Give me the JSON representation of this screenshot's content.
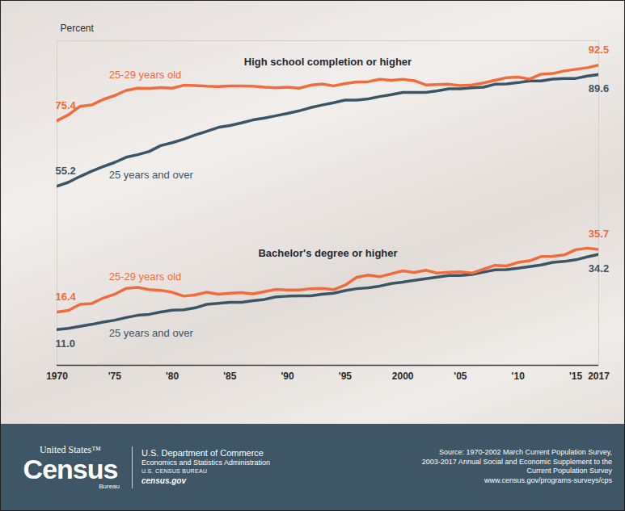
{
  "chart_data": {
    "type": "line",
    "ylabel": "Percent",
    "x": [
      1970,
      1971,
      1972,
      1973,
      1974,
      1975,
      1976,
      1977,
      1978,
      1979,
      1980,
      1981,
      1982,
      1983,
      1984,
      1985,
      1986,
      1987,
      1988,
      1989,
      1990,
      1991,
      1992,
      1993,
      1994,
      1995,
      1996,
      1997,
      1998,
      1999,
      2000,
      2001,
      2002,
      2003,
      2004,
      2005,
      2006,
      2007,
      2008,
      2009,
      2010,
      2011,
      2012,
      2013,
      2014,
      2015,
      2016,
      2017
    ],
    "xlim": [
      1970,
      2017
    ],
    "xticks": [
      1970,
      {
        "value": 1975,
        "label": "'75"
      },
      {
        "value": 1980,
        "label": "'80"
      },
      {
        "value": 1985,
        "label": "'85"
      },
      {
        "value": 1990,
        "label": "'90"
      },
      {
        "value": 1995,
        "label": "'95"
      },
      2000,
      {
        "value": 2005,
        "label": "'05"
      },
      {
        "value": 2010,
        "label": "'10"
      },
      {
        "value": 2015,
        "label": "'15"
      },
      2017
    ],
    "ylim": [
      0,
      100
    ],
    "tick_labels": "x",
    "grid": false,
    "data_labels": true,
    "groups": [
      {
        "title": "High school completion or higher",
        "series": [
          {
            "name": "25 years and over",
            "color": "#3b5466",
            "values": [
              55.2,
              56.4,
              58.2,
              59.8,
              61.2,
              62.5,
              64.1,
              64.9,
              65.9,
              67.7,
              68.6,
              69.7,
              71.0,
              72.1,
              73.3,
              73.9,
              74.7,
              75.6,
              76.2,
              76.9,
              77.6,
              78.4,
              79.4,
              80.2,
              80.9,
              81.7,
              81.7,
              82.1,
              82.8,
              83.4,
              84.1,
              84.1,
              84.1,
              84.6,
              85.2,
              85.2,
              85.5,
              85.7,
              86.6,
              86.7,
              87.1,
              87.6,
              87.6,
              88.2,
              88.4,
              88.4,
              89.1,
              89.6
            ],
            "value_labels": [
              "55.2",
              null,
              null,
              null,
              null,
              null,
              null,
              null,
              null,
              null,
              null,
              null,
              null,
              null,
              null,
              null,
              null,
              null,
              null,
              null,
              null,
              null,
              null,
              null,
              null,
              null,
              null,
              null,
              null,
              null,
              null,
              null,
              null,
              null,
              null,
              null,
              null,
              null,
              null,
              null,
              null,
              null,
              null,
              null,
              null,
              null,
              null,
              "89.6"
            ]
          },
          {
            "name": "25-29 years old",
            "color": "#f26b3a",
            "values": [
              75.4,
              77.2,
              79.8,
              80.2,
              81.9,
              83.1,
              84.7,
              85.4,
              85.3,
              85.6,
              85.4,
              86.3,
              86.2,
              86.0,
              85.9,
              86.1,
              86.1,
              86.0,
              85.7,
              85.5,
              85.7,
              85.4,
              86.3,
              86.7,
              86.1,
              86.8,
              87.3,
              87.4,
              88.1,
              87.8,
              88.1,
              87.7,
              86.4,
              86.5,
              86.6,
              86.2,
              86.4,
              87.0,
              87.8,
              88.6,
              88.8,
              88.2,
              89.7,
              89.9,
              90.7,
              91.2,
              91.7,
              92.5
            ],
            "value_labels": [
              "75.4",
              null,
              null,
              null,
              null,
              null,
              null,
              null,
              null,
              null,
              null,
              null,
              null,
              null,
              null,
              null,
              null,
              null,
              null,
              null,
              null,
              null,
              null,
              null,
              null,
              null,
              null,
              null,
              null,
              null,
              null,
              null,
              null,
              null,
              null,
              null,
              null,
              null,
              null,
              null,
              null,
              null,
              null,
              null,
              null,
              null,
              null,
              "92.5"
            ]
          }
        ]
      },
      {
        "title": "Bachelor's degree or higher",
        "series": [
          {
            "name": "25 years and over",
            "color": "#3b5466",
            "values": [
              11.0,
              11.4,
              12.0,
              12.6,
              13.3,
              13.9,
              14.7,
              15.4,
              15.7,
              16.4,
              17.0,
              17.1,
              17.7,
              18.8,
              19.1,
              19.4,
              19.4,
              19.9,
              20.3,
              21.1,
              21.3,
              21.4,
              21.4,
              21.9,
              22.2,
              23.0,
              23.6,
              23.9,
              24.4,
              25.2,
              25.6,
              26.2,
              26.7,
              27.2,
              27.7,
              27.7,
              28.0,
              28.7,
              29.4,
              29.5,
              29.9,
              30.4,
              30.9,
              31.7,
              32.0,
              32.5,
              33.4,
              34.2
            ],
            "value_labels": [
              "11.0",
              null,
              null,
              null,
              null,
              null,
              null,
              null,
              null,
              null,
              null,
              null,
              null,
              null,
              null,
              null,
              null,
              null,
              null,
              null,
              null,
              null,
              null,
              null,
              null,
              null,
              null,
              null,
              null,
              null,
              null,
              null,
              null,
              null,
              null,
              null,
              null,
              null,
              null,
              null,
              null,
              null,
              null,
              null,
              null,
              null,
              null,
              "34.2"
            ]
          },
          {
            "name": "25-29 years old",
            "color": "#f26b3a",
            "values": [
              16.4,
              16.9,
              18.8,
              19.0,
              20.7,
              21.9,
              23.7,
              24.0,
              23.3,
              23.1,
              22.5,
              21.3,
              21.7,
              22.5,
              21.9,
              22.2,
              22.4,
              22.0,
              22.7,
              23.4,
              23.2,
              23.2,
              23.6,
              23.7,
              23.3,
              24.7,
              27.1,
              27.8,
              27.3,
              28.2,
              29.1,
              28.6,
              29.3,
              28.4,
              28.7,
              28.8,
              28.4,
              29.6,
              30.8,
              30.6,
              31.7,
              32.2,
              33.5,
              33.6,
              34.0,
              35.6,
              36.1,
              35.7
            ],
            "value_labels": [
              "16.4",
              null,
              null,
              null,
              null,
              null,
              null,
              null,
              null,
              null,
              null,
              null,
              null,
              null,
              null,
              null,
              null,
              null,
              null,
              null,
              null,
              null,
              null,
              null,
              null,
              null,
              null,
              null,
              null,
              null,
              null,
              null,
              null,
              null,
              null,
              null,
              null,
              null,
              null,
              null,
              null,
              null,
              null,
              null,
              null,
              null,
              null,
              "35.7"
            ]
          }
        ]
      }
    ]
  },
  "footer": {
    "logo": [
      "United States™",
      "Census",
      "Bureau"
    ],
    "agency": [
      "U.S. Department of Commerce",
      "Economics and Statistics Administration",
      "U.S. CENSUS BUREAU",
      "census.gov"
    ],
    "source": [
      "Source: 1970-2002 March Current Population Survey,",
      "2003-2017 Annual Social and Economic Supplement to the",
      "Current Population Survey",
      "www.census.gov/programs-surveys/cps"
    ]
  }
}
